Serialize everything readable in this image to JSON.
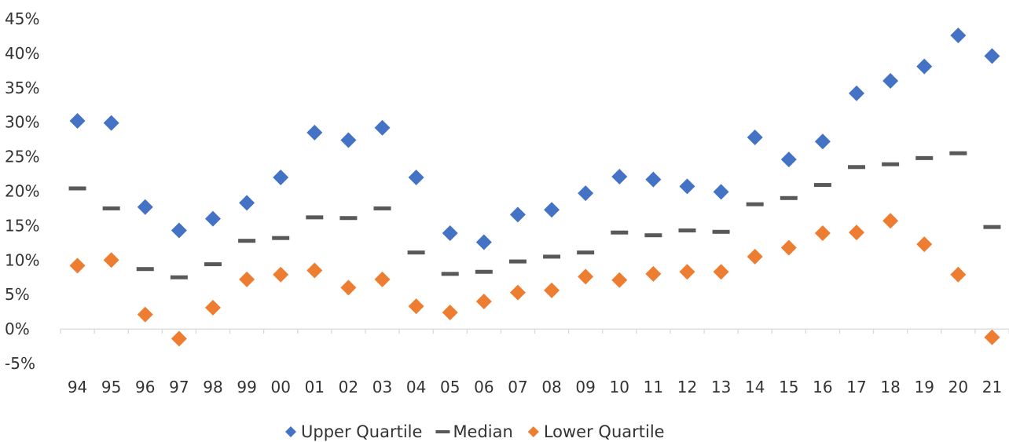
{
  "chart_data": {
    "type": "scatter",
    "categories": [
      "94",
      "95",
      "96",
      "97",
      "98",
      "99",
      "00",
      "01",
      "02",
      "03",
      "04",
      "05",
      "06",
      "07",
      "08",
      "09",
      "10",
      "11",
      "12",
      "13",
      "14",
      "15",
      "16",
      "17",
      "18",
      "19",
      "20",
      "21"
    ],
    "ylim": [
      -5,
      45
    ],
    "yticks": [
      -5,
      0,
      5,
      10,
      15,
      20,
      25,
      30,
      35,
      40,
      45
    ],
    "ytick_labels": [
      "-5%",
      "0%",
      "5%",
      "10%",
      "15%",
      "20%",
      "25%",
      "30%",
      "35%",
      "40%",
      "45%"
    ],
    "grid": false,
    "legend_position": "bottom",
    "series": [
      {
        "name": "Upper Quartile",
        "marker": "diamond",
        "color": "#4472C4",
        "values": [
          30.2,
          29.9,
          17.7,
          14.3,
          16.0,
          18.3,
          22.0,
          28.5,
          27.4,
          29.2,
          22.0,
          13.9,
          12.6,
          16.6,
          17.3,
          19.7,
          22.1,
          21.7,
          20.7,
          19.9,
          27.8,
          24.6,
          27.2,
          34.2,
          36.0,
          38.1,
          42.6,
          39.6
        ]
      },
      {
        "name": "Median",
        "marker": "dash",
        "color": "#595959",
        "values": [
          20.4,
          17.5,
          8.7,
          7.5,
          9.4,
          12.8,
          13.2,
          16.2,
          16.1,
          17.5,
          11.1,
          8.0,
          8.3,
          9.8,
          10.5,
          11.1,
          14.0,
          13.6,
          14.3,
          14.1,
          18.1,
          19.0,
          20.9,
          23.5,
          23.9,
          24.8,
          25.5,
          14.8
        ]
      },
      {
        "name": "Lower Quartile",
        "marker": "diamond",
        "color": "#ED7D31",
        "values": [
          9.2,
          10.0,
          2.1,
          -1.4,
          3.1,
          7.2,
          7.9,
          8.5,
          6.0,
          7.2,
          3.3,
          2.4,
          4.0,
          5.3,
          5.6,
          7.6,
          7.1,
          8.0,
          8.3,
          8.3,
          10.5,
          11.8,
          13.9,
          14.0,
          15.7,
          12.3,
          7.9,
          -1.2
        ]
      }
    ]
  }
}
